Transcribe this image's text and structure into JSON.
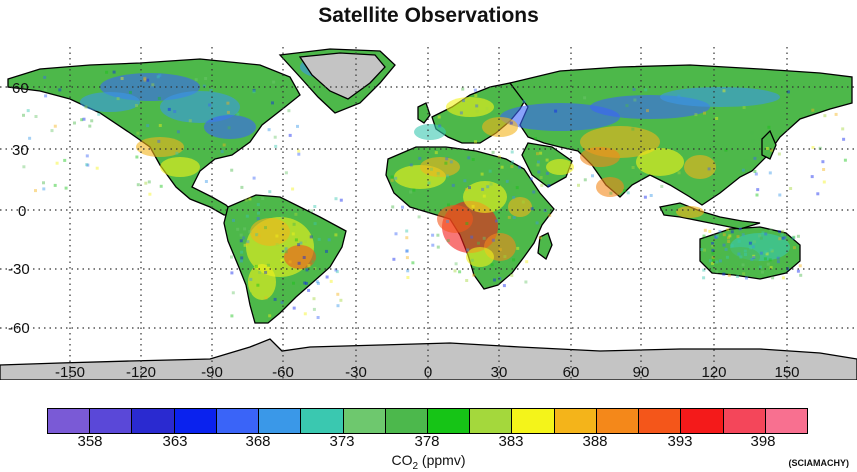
{
  "title": "Satellite Observations",
  "map": {
    "lat_labels": [
      "60",
      "30",
      "0",
      "-30",
      "-60"
    ],
    "lon_labels": [
      "-150",
      "-120",
      "-90",
      "-60",
      "-30",
      "0",
      "30",
      "60",
      "90",
      "120",
      "150"
    ],
    "colors": {
      "ocean": "#ffffff",
      "ice": "#c4c4c4",
      "land_base": "#4db84a",
      "grid": "#333333"
    }
  },
  "colorbar": {
    "colors": [
      "#7a5ad6",
      "#5a48d8",
      "#2a2ad0",
      "#0a22ee",
      "#3a64f8",
      "#3a98e8",
      "#3ac8b0",
      "#6ec86e",
      "#4cb84c",
      "#16c416",
      "#a4d83c",
      "#f4f41a",
      "#f4b41a",
      "#f4881a",
      "#f4561a",
      "#f41a1a",
      "#f4465a",
      "#f87090"
    ],
    "tick_labels": [
      "358",
      "363",
      "368",
      "373",
      "378",
      "383",
      "388",
      "393",
      "398"
    ],
    "label_main": "CO",
    "label_sub": "2",
    "label_unit": " (ppmv)"
  },
  "source": "(SCIAMACHY)"
}
